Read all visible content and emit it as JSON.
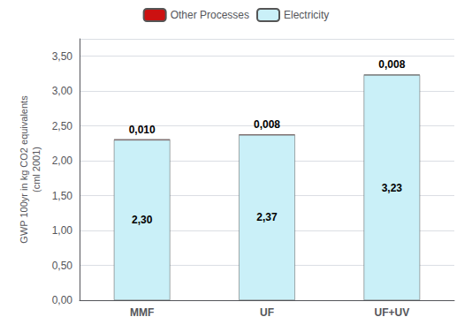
{
  "chart_data": {
    "type": "bar",
    "categories": [
      "MMF",
      "UF",
      "UF+UV"
    ],
    "ylabel": "GWP 100yr in kg CO2 equivalents\n(cml 2001)",
    "ylim": [
      0,
      3.75
    ],
    "yticks": [
      {
        "value": 0.0,
        "label": "0,00"
      },
      {
        "value": 0.5,
        "label": "0,50"
      },
      {
        "value": 1.0,
        "label": "1,00"
      },
      {
        "value": 1.5,
        "label": "1,50"
      },
      {
        "value": 2.0,
        "label": "2,00"
      },
      {
        "value": 2.5,
        "label": "2,50"
      },
      {
        "value": 3.0,
        "label": "3,00"
      },
      {
        "value": 3.5,
        "label": "3,50"
      }
    ],
    "stacked": true,
    "data_labels": true,
    "grid": true,
    "legend": "top",
    "series": [
      {
        "name": "Electricity",
        "color": "#caf0f8",
        "values": [
          2.3,
          2.37,
          3.23
        ],
        "value_labels": [
          "2,30",
          "2,37",
          "3,23"
        ]
      },
      {
        "name": "Other Processes",
        "color": "#cc1111",
        "values": [
          0.01,
          0.008,
          0.008
        ],
        "value_labels": [
          "0,010",
          "0,008",
          "0,008"
        ]
      }
    ]
  }
}
